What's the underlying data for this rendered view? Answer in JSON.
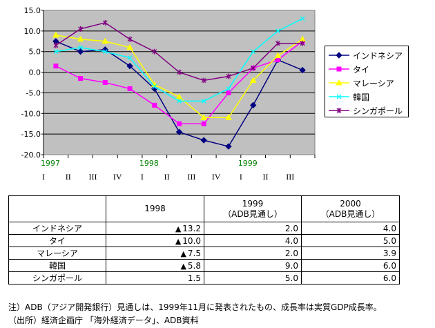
{
  "chart_data": {
    "type": "line",
    "y_ticks": [
      "15.0",
      "10.0",
      "5.0",
      "0.0",
      "-5.0",
      "-10.0",
      "-15.0",
      "-20.0"
    ],
    "ylim": [
      -20,
      15
    ],
    "categories": [
      "I",
      "II",
      "III",
      "IV",
      "I",
      "II",
      "III",
      "IV",
      "I",
      "II",
      "III"
    ],
    "year_labels": [
      {
        "text": "1997",
        "index": 0
      },
      {
        "text": "1998",
        "index": 4
      },
      {
        "text": "1999",
        "index": 8
      }
    ],
    "series": [
      {
        "name": "インドネシア",
        "color": "#000080",
        "marker": "diamond",
        "values": [
          7.5,
          5.0,
          5.5,
          1.5,
          -4.0,
          -14.5,
          -16.5,
          -18.0,
          -8.0,
          3.0,
          0.5
        ]
      },
      {
        "name": "タイ",
        "color": "#ff00ff",
        "marker": "square",
        "values": [
          1.5,
          -1.5,
          -2.5,
          -4.0,
          -8.0,
          -12.5,
          -12.5,
          -5.0,
          1.0,
          3.0,
          7.5
        ]
      },
      {
        "name": "マレーシア",
        "color": "#ffff00",
        "marker": "triangle",
        "values": [
          9.0,
          8.0,
          7.5,
          6.0,
          -3.0,
          -6.0,
          -11.0,
          -11.0,
          -2.0,
          4.0,
          8.0
        ]
      },
      {
        "name": "韓国",
        "color": "#00ffff",
        "marker": "x",
        "values": [
          5.0,
          6.0,
          5.0,
          3.5,
          -3.5,
          -7.0,
          -7.0,
          -4.0,
          5.0,
          10.0,
          13.0
        ]
      },
      {
        "name": "シンガポール",
        "color": "#800080",
        "marker": "star",
        "values": [
          6.5,
          10.5,
          12.0,
          8.0,
          5.0,
          0.0,
          -2.0,
          -1.0,
          1.0,
          7.0,
          7.0
        ]
      }
    ]
  },
  "table": {
    "headers": [
      {
        "line1": "",
        "line2": ""
      },
      {
        "line1": "1998",
        "line2": ""
      },
      {
        "line1": "1999",
        "line2": "（ADB見通し）"
      },
      {
        "line1": "2000",
        "line2": "（ADB見通し）"
      }
    ],
    "rows": [
      {
        "name": "インドネシア",
        "mark": "▲",
        "y1998": "13.2",
        "y1999": "2.0",
        "y2000": "4.0"
      },
      {
        "name": "タイ",
        "mark": "▲",
        "y1998": "10.0",
        "y1999": "4.0",
        "y2000": "5.0"
      },
      {
        "name": "マレーシア",
        "mark": "▲",
        "y1998": "7.5",
        "y1999": "2.0",
        "y2000": "3.9"
      },
      {
        "name": "韓国",
        "mark": "▲",
        "y1998": "5.8",
        "y1999": "9.0",
        "y2000": "6.0"
      },
      {
        "name": "シンガポール",
        "mark": "",
        "y1998": "1.5",
        "y1999": "5.0",
        "y2000": "6.0"
      }
    ]
  },
  "notes": {
    "note": "注）ADB（アジア開発銀行）見通しは、1999年11月に発表されたもの、成長率は実質GDP成長率。",
    "source": "（出所）経済企画庁 「海外経済データ」、ADB資料"
  }
}
